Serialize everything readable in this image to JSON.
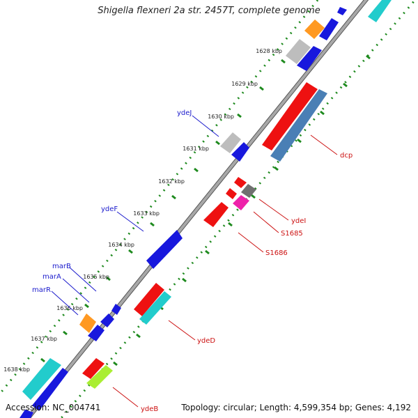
{
  "title": "Shigella flexneri 2a str. 2457T, complete genome",
  "footer": {
    "accession": "Accession: NC_004741",
    "summary": "Topology: circular; Length: 4,599,354 bp; Genes: 4,192"
  },
  "colors": {
    "backbone": "#9a9a9a",
    "tick": "#1e8a1e",
    "forward_label": "#1a1acc",
    "reverse_label": "#cc1111",
    "red": "#ee1111",
    "blue": "#1818dd",
    "steelblue": "#4a7fb5",
    "cyan": "#22cccc",
    "orange": "#ff9922",
    "grey": "#bdbdbd",
    "darkgrey": "#707070",
    "magenta": "#ee22aa",
    "lime": "#aaee33"
  },
  "kbp_labels": [
    "1628 kbp",
    "1629 kbp",
    "1630 kbp",
    "1631 kbp",
    "1632 kbp",
    "1633 kbp",
    "1634 kbp",
    "1635 kbp",
    "1636 kbp",
    "1637 kbp",
    "1638 kbp"
  ],
  "gene_labels": {
    "ydeJ": "ydeJ",
    "ydeF": "ydeF",
    "marB": "marB",
    "marA": "marA",
    "marR": "marR",
    "dcp": "dcp",
    "ydeI": "ydeI",
    "S1685": "S1685",
    "S1686": "S1686",
    "ydeD": "ydeD",
    "ydeB": "ydeB"
  }
}
